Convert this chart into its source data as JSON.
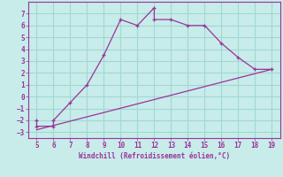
{
  "xlabel": "Windchill (Refroidissement éolien,°C)",
  "curve_x": [
    5,
    5,
    6,
    6,
    7,
    8,
    9,
    10,
    11,
    12,
    12,
    13,
    14,
    15,
    16,
    17,
    18,
    19
  ],
  "curve_y": [
    -2,
    -2.5,
    -2.5,
    -2,
    -0.5,
    1,
    3.5,
    6.5,
    6.0,
    7.5,
    6.5,
    6.5,
    6.0,
    6.0,
    4.5,
    3.3,
    2.3,
    2.3
  ],
  "line_x": [
    5,
    19
  ],
  "line_y": [
    -2.8,
    2.3
  ],
  "color": "#993399",
  "bg_color": "#c8ecea",
  "grid_color": "#a0d8d4",
  "xlim": [
    4.5,
    19.5
  ],
  "ylim": [
    -3.5,
    8.0
  ],
  "xticks": [
    5,
    6,
    7,
    8,
    9,
    10,
    11,
    12,
    13,
    14,
    15,
    16,
    17,
    18,
    19
  ],
  "yticks": [
    -3,
    -2,
    -1,
    0,
    1,
    2,
    3,
    4,
    5,
    6,
    7
  ]
}
